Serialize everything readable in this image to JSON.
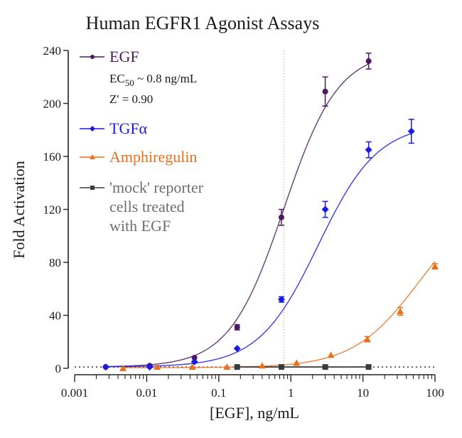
{
  "chart_data": {
    "type": "scatter",
    "title": "Human EGFR1 Agonist Assays",
    "xlabel": "[EGF], ng/mL",
    "ylabel": "Fold Activation",
    "xscale": "log",
    "xlim": [
      0.001,
      100
    ],
    "ylim": [
      0,
      240
    ],
    "x_ticks": [
      0.001,
      0.01,
      0.1,
      1,
      10,
      100
    ],
    "x_tick_labels": [
      "0.001",
      "0.01",
      "0.1",
      "1",
      "10",
      "100"
    ],
    "y_ticks": [
      0,
      40,
      80,
      120,
      160,
      200,
      240
    ],
    "y_tick_labels": [
      "0",
      "40",
      "80",
      "120",
      "160",
      "200",
      "240"
    ],
    "legend_position": "top-left",
    "baseline": {
      "value": 1,
      "style": "dotted"
    },
    "reference_line": {
      "x": 0.8,
      "style": "dotted",
      "label": "EC50 marker"
    },
    "series": [
      {
        "name": "EGF",
        "color": "#4b1a5e",
        "marker": "circle",
        "annotations": [
          "EC50 ~ 0.8 ng/mL",
          "Z' = 0.90"
        ],
        "ec50_sub": "50",
        "x": [
          0.0027,
          0.011,
          0.046,
          0.18,
          0.74,
          3.0,
          12
        ],
        "y": [
          1,
          2,
          8,
          31,
          114,
          209,
          232
        ],
        "err": [
          1,
          1,
          1,
          2,
          6,
          11,
          6
        ],
        "fit": {
          "bottom": 1,
          "top": 240,
          "ec50": 0.8,
          "hill": 1.15
        }
      },
      {
        "name": "TGFα",
        "color": "#1a1ae0",
        "marker": "diamond",
        "x": [
          0.0027,
          0.011,
          0.046,
          0.18,
          0.74,
          3.0,
          12,
          47
        ],
        "y": [
          1,
          1,
          5,
          15,
          52,
          120,
          165,
          179
        ],
        "err": [
          1,
          1,
          1,
          1,
          2,
          6,
          6,
          9
        ],
        "fit": {
          "bottom": 1,
          "top": 185,
          "ec50": 2.4,
          "hill": 1.05
        }
      },
      {
        "name": "Amphiregulin",
        "color": "#e8701e",
        "marker": "triangle",
        "x": [
          0.0047,
          0.014,
          0.043,
          0.13,
          0.4,
          1.2,
          3.6,
          11.5,
          33,
          100
        ],
        "y": [
          0,
          1,
          1,
          1,
          2,
          4,
          10,
          22,
          43,
          77
        ],
        "err": [
          0.5,
          0.5,
          0.5,
          0.5,
          0.5,
          1,
          1,
          2,
          3,
          2
        ],
        "fit": {
          "bottom": 0.5,
          "top": 130,
          "ec50": 60,
          "hill": 0.95
        }
      },
      {
        "name": "'mock' reporter cells treated with EGF",
        "legend_lines": [
          "'mock' reporter",
          "cells treated",
          "with EGF"
        ],
        "color": "#3a3a3a",
        "label_color": "#6e6e6e",
        "marker": "square",
        "x": [
          0.18,
          0.74,
          3.0,
          12
        ],
        "y": [
          1,
          1,
          1,
          1
        ],
        "err": [
          0,
          0,
          0,
          0
        ]
      }
    ]
  }
}
